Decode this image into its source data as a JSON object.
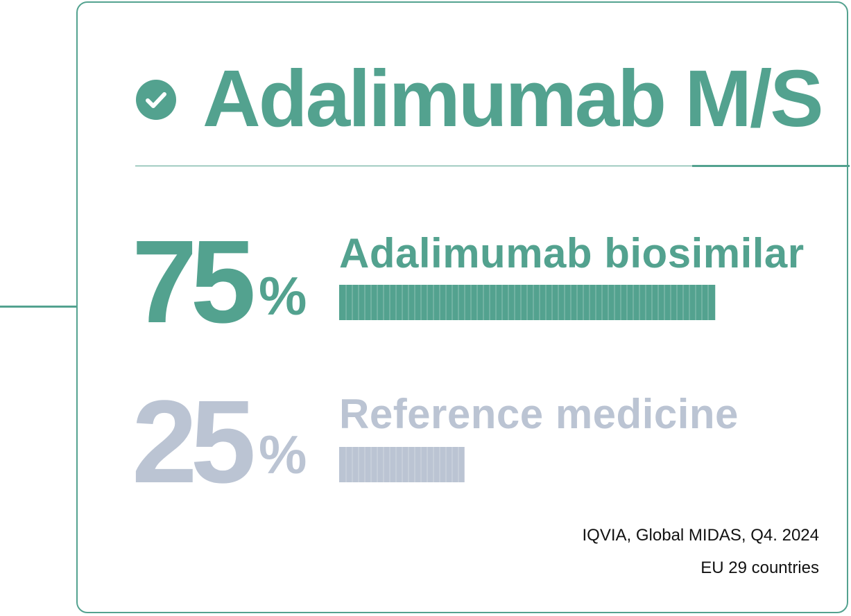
{
  "colors": {
    "accent": "#53a28f",
    "reference": "#bbc4d3",
    "text_dark": "#111111"
  },
  "header": {
    "icon": "check-circle-icon",
    "title": "Adalimumab M/S"
  },
  "chart_data": {
    "type": "bar",
    "orientation": "horizontal",
    "title": "Adalimumab M/S",
    "categories": [
      "Adalimumab biosimilar",
      "Reference medicine"
    ],
    "values": [
      75,
      25
    ],
    "value_labels": [
      "75",
      "25"
    ],
    "unit": "%",
    "xlim": [
      0,
      100
    ],
    "colors": [
      "#53a28f",
      "#bbc4d3"
    ]
  },
  "source": {
    "line1": "IQVIA, Global MIDAS, Q4. 2024",
    "line2": "EU 29 countries"
  }
}
